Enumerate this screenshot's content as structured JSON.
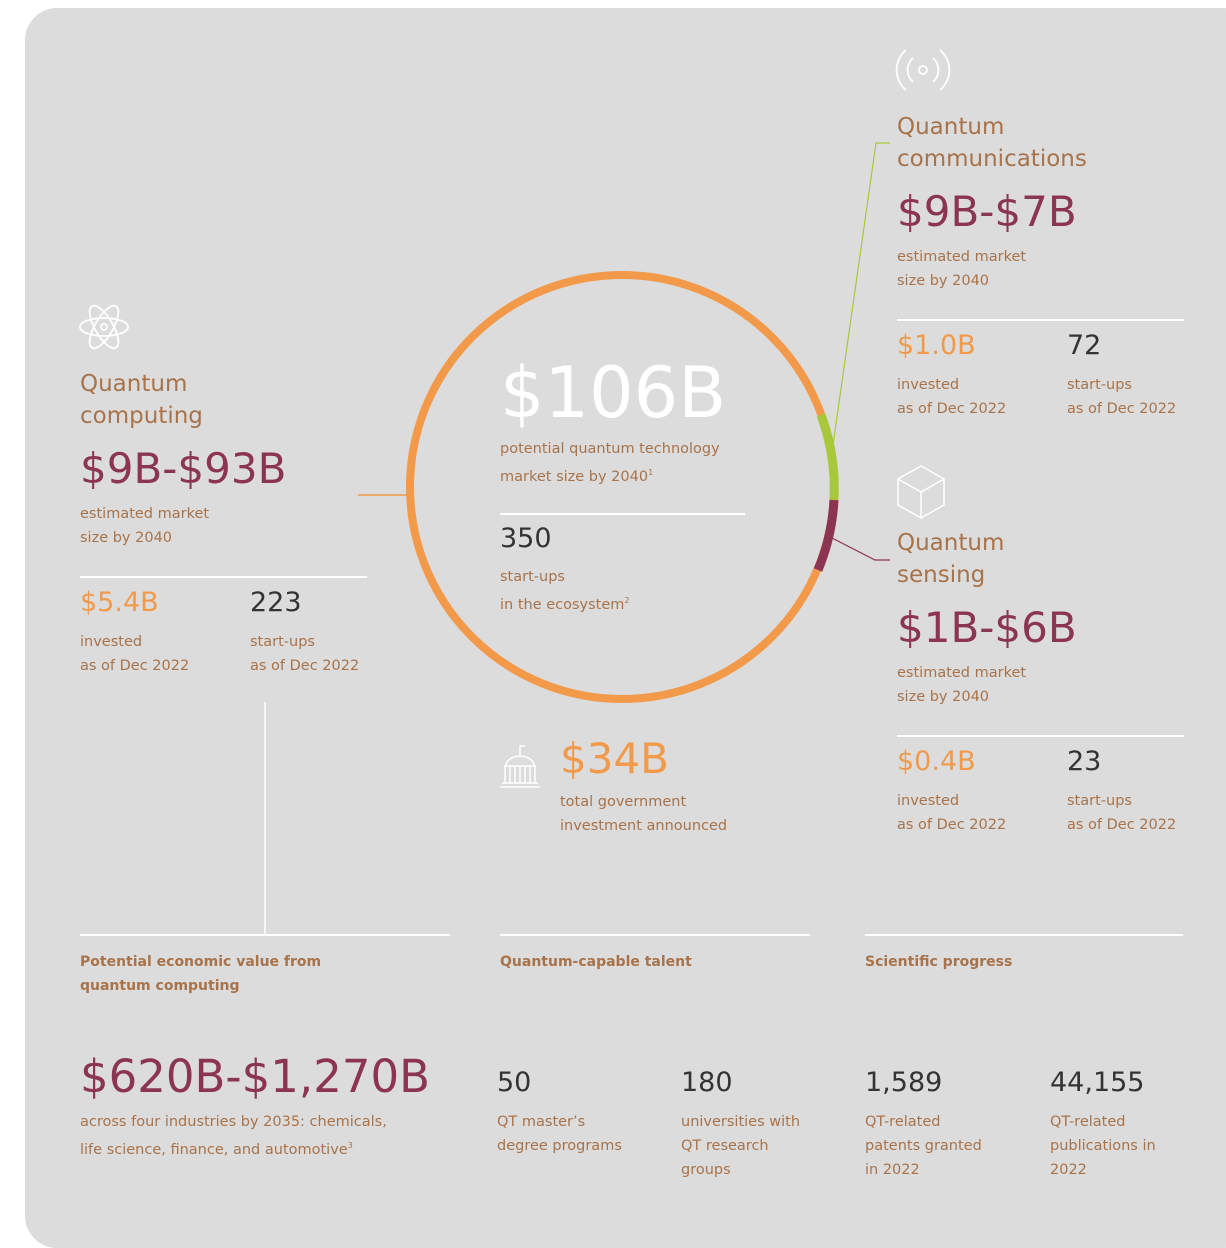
{
  "total": {
    "value": "$106B",
    "label": [
      "potential quantum technology",
      "market size by 2040"
    ],
    "note": "1",
    "startups": "350",
    "startups_label": [
      "start-ups",
      "in the ecosystem"
    ],
    "startups_note": "2"
  },
  "government": {
    "value": "$34B",
    "label": [
      "total government",
      "investment announced"
    ]
  },
  "segments": [
    {
      "title": [
        "Quantum",
        "computing"
      ],
      "range": "$9B-$93B",
      "range_label": [
        "estimated market",
        "size by 2040"
      ],
      "invested": "$5.4B",
      "invested_label": [
        "invested",
        "as of Dec 2022"
      ],
      "startups": "223",
      "startups_label": [
        "start-ups",
        "as of Dec 2022"
      ]
    },
    {
      "title": [
        "Quantum",
        "communications"
      ],
      "range": "$9B-$7B",
      "range_label": [
        "estimated market",
        "size by 2040"
      ],
      "invested": "$1.0B",
      "invested_label": [
        "invested",
        "as of Dec 2022"
      ],
      "startups": "72",
      "startups_label": [
        "start-ups",
        "as of Dec 2022"
      ]
    },
    {
      "title": [
        "Quantum",
        "sensing"
      ],
      "range": "$1B-$6B",
      "range_label": [
        "estimated market",
        "size by 2040"
      ],
      "invested": "$0.4B",
      "invested_label": [
        "invested",
        "as of Dec 2022"
      ],
      "startups": "23",
      "startups_label": [
        "start-ups",
        "as of Dec 2022"
      ]
    }
  ],
  "sections": [
    {
      "heading": [
        "Potential economic value from",
        "quantum computing"
      ],
      "value": "$620B-$1,270B",
      "label": [
        "across four industries by 2035: chemicals,",
        "life science, finance, and automotive"
      ],
      "note": "3"
    },
    {
      "heading": [
        "Quantum-capable talent"
      ],
      "stats": [
        {
          "value": "50",
          "label": [
            "QT master’s",
            "degree programs"
          ]
        },
        {
          "value": "180",
          "label": [
            "universities with",
            "QT research",
            "groups"
          ]
        }
      ]
    },
    {
      "heading": [
        "Scientific progress"
      ],
      "stats": [
        {
          "value": "1,589",
          "label": [
            "QT-related",
            "patents granted",
            "in 2022"
          ]
        },
        {
          "value": "44,155",
          "label": [
            "QT-related",
            "publications in",
            "2022"
          ]
        }
      ]
    }
  ]
}
